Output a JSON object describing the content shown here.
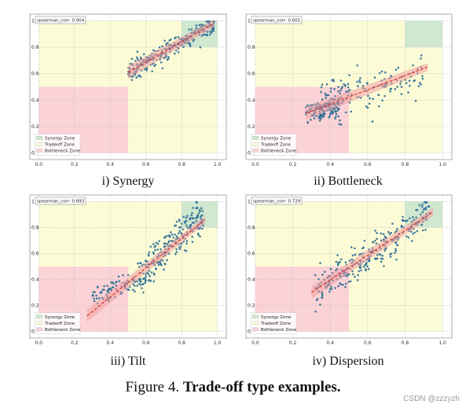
{
  "colors": {
    "synergy_zone": "#cfe8cf",
    "tradeoff_zone": "#fbfbd6",
    "bottleneck_zone": "#fbd2d6",
    "points": "#2e6e95",
    "fit_line": "#d62828",
    "fit_band": "#f4a3a3",
    "grid": "#bdbdbd",
    "border": "#9a9a9a"
  },
  "figure_caption": {
    "prefix": "Figure 4.",
    "title": "Trade-off type examples."
  },
  "watermark": "CSDN @zzzyzh",
  "chart_data": [
    {
      "type": "scatter",
      "caption": "i) Synergy",
      "correlation_label": "spearman_corr: 0.904",
      "xlim": [
        0,
        1
      ],
      "ylim": [
        0,
        1
      ],
      "xticks": [
        "0.0",
        "0.2",
        "0.4",
        "0.6",
        "0.8",
        "1.0"
      ],
      "yticks": [
        "0.0",
        "0.2",
        "0.4",
        "0.6",
        "0.8",
        "1.0"
      ],
      "grid": true,
      "legend": {
        "placement": "bottom-left",
        "entries": [
          "Synergy Zone",
          "Tradeoff Zone",
          "Bottleneck Zone"
        ]
      },
      "zones": {
        "bottleneck": [
          0.5,
          0.5
        ],
        "synergy": [
          0.8,
          0.8
        ]
      },
      "fit": {
        "x": [
          0.5,
          0.98
        ],
        "y": [
          0.61,
          0.98
        ]
      },
      "clusters": [
        {
          "x_range": [
            0.5,
            0.98
          ],
          "y_center_at_x": [
            0.61,
            0.98
          ],
          "spread": 0.035,
          "n": 260
        }
      ]
    },
    {
      "type": "scatter",
      "caption": "ii) Bottleneck",
      "correlation_label": "spearman_corr: 0.601",
      "xlim": [
        0,
        1
      ],
      "ylim": [
        0,
        1
      ],
      "xticks": [
        "0.0",
        "0.2",
        "0.4",
        "0.6",
        "0.8",
        "1.0"
      ],
      "yticks": [
        "0.0",
        "0.2",
        "0.4",
        "0.6",
        "0.8",
        "1.0"
      ],
      "grid": true,
      "legend": {
        "placement": "bottom-left",
        "entries": [
          "Synergy Zone",
          "Tradeoff Zone",
          "Bottleneck Zone"
        ]
      },
      "zones": {
        "bottleneck": [
          0.5,
          0.5
        ],
        "synergy": [
          0.8,
          0.8
        ]
      },
      "fit": {
        "x": [
          0.27,
          0.92
        ],
        "y": [
          0.3,
          0.65
        ]
      },
      "clusters": [
        {
          "x_range": [
            0.27,
            0.45
          ],
          "y_center_at_x": [
            0.31,
            0.36
          ],
          "spread": 0.04,
          "n": 150
        },
        {
          "x_range": [
            0.35,
            0.9
          ],
          "y_center_at_x": [
            0.38,
            0.62
          ],
          "spread": 0.08,
          "n": 140
        }
      ]
    },
    {
      "type": "scatter",
      "caption": "iii) Tilt",
      "correlation_label": "spearman_corr: 0.893",
      "xlim": [
        0,
        1
      ],
      "ylim": [
        0,
        1
      ],
      "xticks": [
        "0.0",
        "0.2",
        "0.4",
        "0.6",
        "0.8",
        "1.0"
      ],
      "yticks": [
        "0.0",
        "0.2",
        "0.4",
        "0.6",
        "0.8",
        "1.0"
      ],
      "grid": true,
      "legend": {
        "placement": "bottom-left",
        "entries": [
          "Synergy Zone",
          "Tradeoff Zone",
          "Bottleneck Zone"
        ]
      },
      "zones": {
        "bottleneck": [
          0.5,
          0.5
        ],
        "synergy": [
          0.8,
          0.8
        ]
      },
      "fit": {
        "x": [
          0.27,
          0.93
        ],
        "y": [
          0.12,
          0.86
        ]
      },
      "clusters": [
        {
          "x_range": [
            0.3,
            0.6
          ],
          "y_center_at_x": [
            0.28,
            0.4
          ],
          "spread": 0.04,
          "n": 90
        },
        {
          "x_range": [
            0.55,
            0.92
          ],
          "y_center_at_x": [
            0.42,
            0.9
          ],
          "spread": 0.07,
          "n": 230
        }
      ]
    },
    {
      "type": "scatter",
      "caption": "iv) Dispersion",
      "correlation_label": "spearman_corr: 0.729",
      "xlim": [
        0,
        1
      ],
      "ylim": [
        0,
        1
      ],
      "xticks": [
        "0.0",
        "0.2",
        "0.4",
        "0.6",
        "0.8",
        "1.0"
      ],
      "yticks": [
        "0.0",
        "0.2",
        "0.4",
        "0.6",
        "0.8",
        "1.0"
      ],
      "grid": true,
      "legend": {
        "placement": "bottom-left",
        "entries": [
          "Synergy Zone",
          "Tradeoff Zone",
          "Bottleneck Zone"
        ]
      },
      "zones": {
        "bottleneck": [
          0.5,
          0.5
        ],
        "synergy": [
          0.8,
          0.8
        ]
      },
      "fit": {
        "x": [
          0.3,
          0.95
        ],
        "y": [
          0.3,
          0.92
        ]
      },
      "clusters": [
        {
          "x_range": [
            0.32,
            0.93
          ],
          "y_center_at_x": [
            0.32,
            0.9
          ],
          "spread": 0.07,
          "n": 280
        }
      ]
    }
  ]
}
